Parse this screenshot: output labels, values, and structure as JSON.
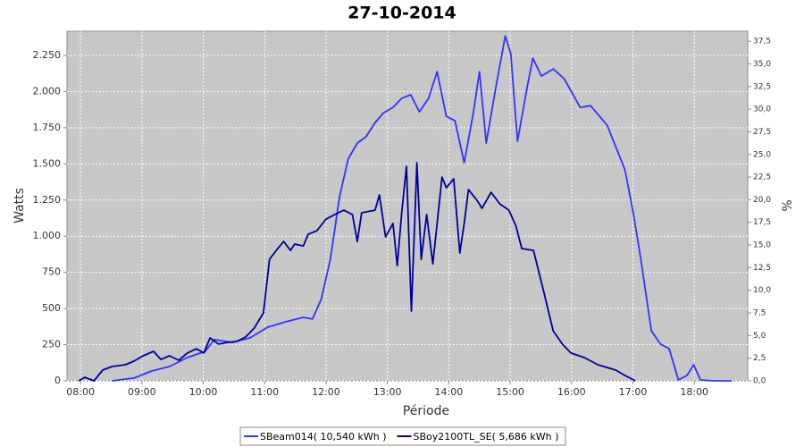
{
  "chart_data": {
    "type": "line",
    "title": "27-10-2014",
    "xlabel": "Période",
    "ylabel": "Watts",
    "y2label": "%",
    "xlim": [
      7.78,
      18.87
    ],
    "xticks": [
      {
        "value": 8,
        "label": "08:00"
      },
      {
        "value": 9,
        "label": "09:00"
      },
      {
        "value": 10,
        "label": "10:00"
      },
      {
        "value": 11,
        "label": "11:00"
      },
      {
        "value": 12,
        "label": "12:00"
      },
      {
        "value": 13,
        "label": "13:00"
      },
      {
        "value": 14,
        "label": "14:00"
      },
      {
        "value": 15,
        "label": "15:00"
      },
      {
        "value": 16,
        "label": "16:00"
      },
      {
        "value": 17,
        "label": "17:00"
      },
      {
        "value": 18,
        "label": "18:00"
      }
    ],
    "ylim": [
      0,
      2417
    ],
    "yticks": [
      0,
      250,
      500,
      750,
      {
        "value": 1000,
        "label": "1.000"
      },
      {
        "value": 1250,
        "label": "1.250"
      },
      {
        "value": 1500,
        "label": "1.500"
      },
      {
        "value": 1750,
        "label": "1.750"
      },
      {
        "value": 2000,
        "label": "2.000"
      },
      {
        "value": 2250,
        "label": "2.250"
      }
    ],
    "y2lim": [
      0,
      38.6
    ],
    "y2ticks": [
      {
        "value": 0,
        "label": "0,0"
      },
      {
        "value": 2.5,
        "label": "2,5"
      },
      {
        "value": 5,
        "label": "5,0"
      },
      {
        "value": 7.5,
        "label": "7,5"
      },
      {
        "value": 10,
        "label": "10,0"
      },
      {
        "value": 12.5,
        "label": "12,5"
      },
      {
        "value": 15,
        "label": "15,0"
      },
      {
        "value": 17.5,
        "label": "17,5"
      },
      {
        "value": 20,
        "label": "20,0"
      },
      {
        "value": 22.5,
        "label": "22,5"
      },
      {
        "value": 25,
        "label": "25,0"
      },
      {
        "value": 27.5,
        "label": "27,5"
      },
      {
        "value": 30,
        "label": "30,0"
      },
      {
        "value": 32.5,
        "label": "32,5"
      },
      {
        "value": 35,
        "label": "35,0"
      },
      {
        "value": 37.5,
        "label": "37,5"
      }
    ],
    "grid": true,
    "legend": "bottom",
    "series": [
      {
        "name": "SBeam014( 10,540 kWh )",
        "color": "#3333ff",
        "x": [
          8.51,
          8.87,
          9.16,
          9.45,
          9.74,
          10.03,
          10.18,
          10.47,
          10.76,
          11.05,
          11.34,
          11.63,
          11.78,
          11.92,
          12.07,
          12.22,
          12.36,
          12.51,
          12.65,
          12.8,
          12.94,
          13.09,
          13.23,
          13.38,
          13.52,
          13.67,
          13.81,
          13.96,
          14.1,
          14.25,
          14.4,
          14.5,
          14.61,
          14.76,
          14.92,
          15.01,
          15.12,
          15.27,
          15.37,
          15.51,
          15.7,
          15.88,
          16.14,
          16.31,
          16.58,
          16.87,
          17.01,
          17.13,
          17.3,
          17.45,
          17.59,
          17.74,
          17.88,
          17.99,
          18.1,
          18.32,
          18.61
        ],
        "values": [
          0,
          19,
          68,
          99,
          161,
          204,
          285,
          266,
          297,
          371,
          408,
          439,
          427,
          563,
          840,
          1273,
          1533,
          1644,
          1687,
          1786,
          1854,
          1891,
          1953,
          1978,
          1860,
          1953,
          2138,
          1829,
          1798,
          1508,
          1854,
          2138,
          1644,
          2014,
          2385,
          2262,
          1656,
          2014,
          2231,
          2107,
          2157,
          2089,
          1891,
          1903,
          1767,
          1459,
          1150,
          840,
          346,
          254,
          222,
          6,
          37,
          111,
          6,
          0,
          0
        ]
      },
      {
        "name": "SBoy2100TL_SE( 5,686 kWh )",
        "color": "#000099",
        "x": [
          7.97,
          8.07,
          8.22,
          8.36,
          8.51,
          8.73,
          8.87,
          9.02,
          9.19,
          9.31,
          9.45,
          9.6,
          9.74,
          9.89,
          10.01,
          10.11,
          10.25,
          10.4,
          10.54,
          10.69,
          10.83,
          10.98,
          11.08,
          11.19,
          11.31,
          11.42,
          11.49,
          11.63,
          11.71,
          11.85,
          12.0,
          12.14,
          12.29,
          12.43,
          12.51,
          12.58,
          12.8,
          12.87,
          12.97,
          13.09,
          13.16,
          13.23,
          13.31,
          13.39,
          13.48,
          13.55,
          13.64,
          13.74,
          13.81,
          13.89,
          13.96,
          14.08,
          14.18,
          14.25,
          14.32,
          14.47,
          14.54,
          14.69,
          14.83,
          14.98,
          15.09,
          15.19,
          15.38,
          15.56,
          15.7,
          15.85,
          15.99,
          16.21,
          16.43,
          16.72,
          16.87,
          17.04
        ],
        "values": [
          0,
          25,
          0,
          74,
          99,
          111,
          136,
          173,
          204,
          148,
          173,
          142,
          192,
          222,
          192,
          297,
          254,
          266,
          272,
          303,
          365,
          470,
          841,
          902,
          964,
          902,
          946,
          933,
          1014,
          1038,
          1118,
          1149,
          1180,
          1149,
          964,
          1162,
          1180,
          1285,
          995,
          1088,
          797,
          1149,
          1483,
          482,
          1508,
          840,
          1149,
          809,
          1088,
          1409,
          1335,
          1397,
          884,
          1088,
          1322,
          1242,
          1193,
          1304,
          1224,
          1180,
          1075,
          915,
          902,
          593,
          346,
          254,
          192,
          161,
          111,
          74,
          37,
          0
        ]
      }
    ]
  }
}
